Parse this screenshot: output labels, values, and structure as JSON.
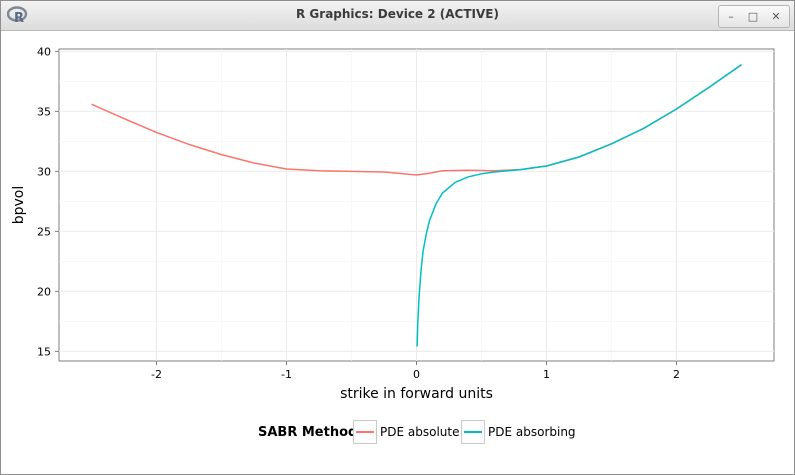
{
  "window": {
    "title": "R Graphics: Device 2 (ACTIVE)",
    "icon": "r-logo-icon",
    "controls": [
      {
        "name": "minimize-icon",
        "glyph": "–"
      },
      {
        "name": "maximize-icon",
        "glyph": "□"
      },
      {
        "name": "close-icon",
        "glyph": "✕"
      }
    ]
  },
  "chart_data": {
    "type": "line",
    "xlabel": "strike in forward units",
    "ylabel": "bpvol",
    "xlim": [
      -2.75,
      2.75
    ],
    "ylim": [
      14.2,
      40.2
    ],
    "xticks": [
      -2,
      -1,
      0,
      1,
      2
    ],
    "xtick_labels": [
      "-2",
      "-1",
      "0",
      "1",
      "2"
    ],
    "yticks": [
      15,
      20,
      25,
      30,
      35,
      40
    ],
    "ytick_labels": [
      "15",
      "20",
      "25",
      "30",
      "35",
      "40"
    ],
    "grid": true,
    "legend": {
      "title": "SABR Method",
      "placement": "bottom"
    },
    "series": [
      {
        "name": "PDE absolute",
        "color": "#F8766D",
        "points": [
          [
            -2.5,
            35.6
          ],
          [
            -2.25,
            34.4
          ],
          [
            -2.0,
            33.25
          ],
          [
            -1.75,
            32.25
          ],
          [
            -1.5,
            31.4
          ],
          [
            -1.25,
            30.7
          ],
          [
            -1.0,
            30.2
          ],
          [
            -0.75,
            30.05
          ],
          [
            -0.5,
            30.0
          ],
          [
            -0.25,
            29.95
          ],
          [
            -0.1,
            29.8
          ],
          [
            0.0,
            29.7
          ],
          [
            0.1,
            29.85
          ],
          [
            0.2,
            30.05
          ],
          [
            0.4,
            30.1
          ],
          [
            0.6,
            30.05
          ],
          [
            0.8,
            30.15
          ],
          [
            1.0,
            30.45
          ],
          [
            1.25,
            31.2
          ],
          [
            1.5,
            32.3
          ],
          [
            1.75,
            33.6
          ],
          [
            2.0,
            35.2
          ],
          [
            2.25,
            37.0
          ],
          [
            2.5,
            38.9
          ]
        ]
      },
      {
        "name": "PDE absorbing",
        "color": "#00BFC4",
        "points": [
          [
            0.005,
            15.4
          ],
          [
            0.01,
            17.4
          ],
          [
            0.02,
            19.6
          ],
          [
            0.035,
            21.8
          ],
          [
            0.05,
            23.3
          ],
          [
            0.075,
            24.8
          ],
          [
            0.1,
            25.9
          ],
          [
            0.15,
            27.3
          ],
          [
            0.2,
            28.2
          ],
          [
            0.3,
            29.1
          ],
          [
            0.4,
            29.55
          ],
          [
            0.5,
            29.8
          ],
          [
            0.6,
            29.95
          ],
          [
            0.7,
            30.05
          ],
          [
            0.8,
            30.15
          ],
          [
            0.9,
            30.3
          ],
          [
            1.0,
            30.45
          ],
          [
            1.25,
            31.2
          ],
          [
            1.5,
            32.3
          ],
          [
            1.75,
            33.6
          ],
          [
            2.0,
            35.2
          ],
          [
            2.25,
            37.0
          ],
          [
            2.5,
            38.9
          ]
        ]
      }
    ]
  }
}
